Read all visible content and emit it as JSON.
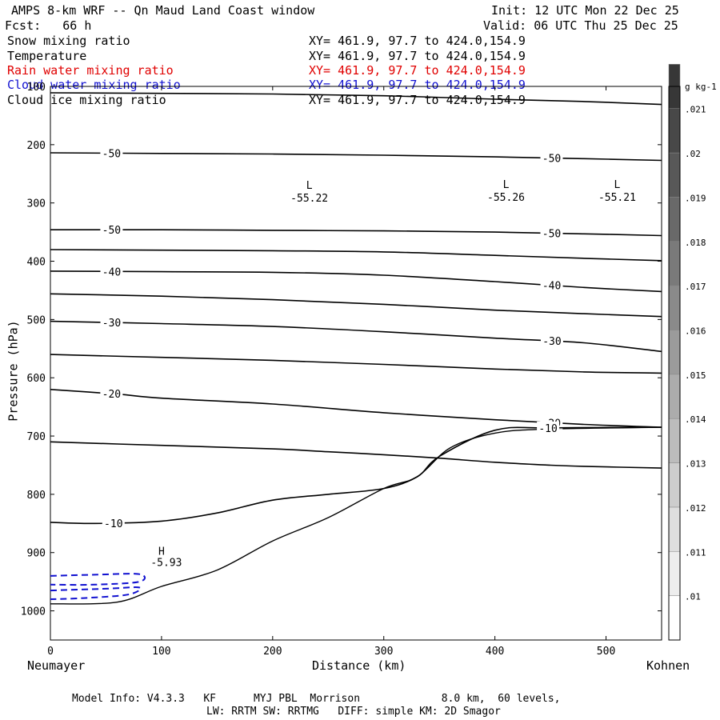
{
  "header": {
    "title": "AMPS 8-km WRF -- Qn Maud Land Coast window",
    "init": "Init: 12 UTC Mon 22 Dec 25",
    "fcst": "Fcst:   66 h",
    "valid": "Valid: 06 UTC Thu 25 Dec 25"
  },
  "fields": [
    {
      "name": "Snow mixing ratio",
      "xy": "XY= 461.9, 97.7 to 424.0,154.9",
      "color": "#000000"
    },
    {
      "name": "Temperature",
      "xy": "XY= 461.9, 97.7 to 424.0,154.9",
      "color": "#000000"
    },
    {
      "name": "Rain water mixing ratio",
      "xy": "XY= 461.9, 97.7 to 424.0,154.9",
      "color": "#e00000"
    },
    {
      "name": "Cloud water mixing ratio",
      "xy": "XY= 461.9, 97.7 to 424.0,154.9",
      "color": "#1010d0"
    },
    {
      "name": "Cloud ice mixing ratio",
      "xy": "XY= 461.9, 97.7 to 424.0,154.9",
      "color": "#000000"
    }
  ],
  "footer": {
    "model_info": "Model Info: V4.3.3   KF      MYJ PBL  Morrison             8.0 km,  60 levels,",
    "physics": "LW: RRTM SW: RRTMG   DIFF: simple KM: 2D Smagor"
  },
  "chart_data": {
    "type": "contour",
    "xlabel": "Distance (km)",
    "ylabel": "Pressure (hPa)",
    "xlim": [
      0,
      550
    ],
    "ylim": [
      1050,
      100
    ],
    "x_ticks": [
      0,
      100,
      200,
      300,
      400,
      500
    ],
    "y_ticks": [
      100,
      200,
      300,
      400,
      500,
      600,
      700,
      800,
      900,
      1000
    ],
    "x_start_label": "Neumayer",
    "x_end_label": "Kohnen",
    "temperature_contours": [
      {
        "label": "",
        "points": [
          [
            0,
            111
          ],
          [
            100,
            112
          ],
          [
            200,
            113
          ],
          [
            300,
            116
          ],
          [
            400,
            122
          ],
          [
            480,
            126
          ],
          [
            550,
            131
          ]
        ]
      },
      {
        "label": "-50",
        "points": [
          [
            0,
            214
          ],
          [
            100,
            215
          ],
          [
            200,
            216
          ],
          [
            300,
            218
          ],
          [
            400,
            221
          ],
          [
            480,
            224
          ],
          [
            550,
            227
          ]
        ]
      },
      {
        "label": "-50",
        "points": [
          [
            0,
            346
          ],
          [
            100,
            346
          ],
          [
            200,
            347
          ],
          [
            300,
            348
          ],
          [
            400,
            350
          ],
          [
            480,
            353
          ],
          [
            550,
            356
          ]
        ]
      },
      {
        "label": "",
        "points": [
          [
            0,
            380
          ],
          [
            100,
            381
          ],
          [
            200,
            382
          ],
          [
            300,
            384
          ],
          [
            400,
            390
          ],
          [
            480,
            395
          ],
          [
            550,
            399
          ]
        ]
      },
      {
        "label": "-40",
        "points": [
          [
            0,
            417
          ],
          [
            100,
            418
          ],
          [
            200,
            419
          ],
          [
            300,
            424
          ],
          [
            400,
            435
          ],
          [
            480,
            445
          ],
          [
            550,
            452
          ]
        ]
      },
      {
        "label": "",
        "points": [
          [
            0,
            456
          ],
          [
            100,
            460
          ],
          [
            200,
            466
          ],
          [
            300,
            474
          ],
          [
            400,
            484
          ],
          [
            480,
            490
          ],
          [
            550,
            495
          ]
        ]
      },
      {
        "label": "-30",
        "points": [
          [
            0,
            503
          ],
          [
            100,
            507
          ],
          [
            200,
            512
          ],
          [
            300,
            521
          ],
          [
            400,
            532
          ],
          [
            480,
            540
          ],
          [
            550,
            555
          ]
        ]
      },
      {
        "label": "",
        "points": [
          [
            0,
            560
          ],
          [
            100,
            565
          ],
          [
            200,
            570
          ],
          [
            300,
            577
          ],
          [
            400,
            585
          ],
          [
            480,
            590
          ],
          [
            550,
            592
          ]
        ]
      },
      {
        "label": "-20",
        "points": [
          [
            0,
            620
          ],
          [
            60,
            628
          ],
          [
            100,
            635
          ],
          [
            200,
            645
          ],
          [
            300,
            660
          ],
          [
            400,
            672
          ],
          [
            480,
            680
          ],
          [
            550,
            685
          ]
        ]
      },
      {
        "label": "",
        "points": [
          [
            0,
            710
          ],
          [
            100,
            716
          ],
          [
            200,
            722
          ],
          [
            250,
            727
          ],
          [
            300,
            732
          ],
          [
            350,
            738
          ],
          [
            400,
            745
          ],
          [
            450,
            750
          ],
          [
            480,
            752
          ],
          [
            550,
            755
          ]
        ]
      },
      {
        "label": "-10",
        "points": [
          [
            0,
            848
          ],
          [
            40,
            850
          ],
          [
            100,
            846
          ],
          [
            150,
            832
          ],
          [
            200,
            810
          ],
          [
            250,
            800
          ],
          [
            300,
            790
          ],
          [
            330,
            770
          ],
          [
            350,
            735
          ],
          [
            400,
            690
          ],
          [
            450,
            686
          ],
          [
            550,
            685
          ]
        ]
      }
    ],
    "pressure_minima": [
      {
        "label": "L",
        "value": "-55.22",
        "x": 233,
        "p": 287
      },
      {
        "label": "L",
        "value": "-55.26",
        "x": 410,
        "p": 285
      },
      {
        "label": "L",
        "value": "-55.21",
        "x": 510,
        "p": 285
      }
    ],
    "maximum": {
      "label": "H",
      "value": "-5.93",
      "x": 100,
      "p": 920
    },
    "terrain": [
      [
        0,
        988
      ],
      [
        60,
        985
      ],
      [
        100,
        958
      ],
      [
        150,
        930
      ],
      [
        200,
        880
      ],
      [
        250,
        840
      ],
      [
        300,
        790
      ],
      [
        330,
        770
      ],
      [
        360,
        720
      ],
      [
        400,
        695
      ],
      [
        450,
        688
      ],
      [
        550,
        685
      ]
    ],
    "colorbar": {
      "unit": "g kg-1",
      "ticks": [
        ".01",
        ".011",
        ".012",
        ".013",
        ".014",
        ".015",
        ".016",
        ".017",
        ".018",
        ".019",
        ".02",
        ".021"
      ]
    }
  }
}
